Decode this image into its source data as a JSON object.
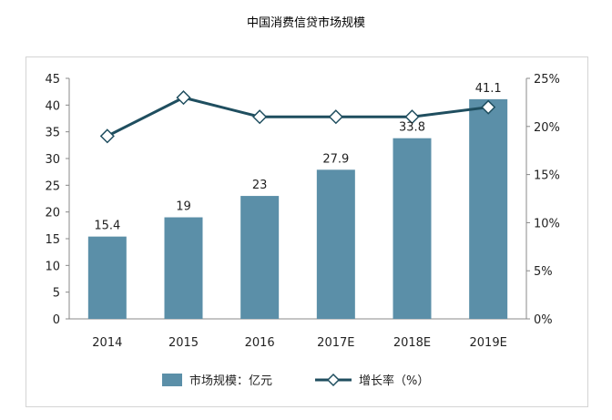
{
  "chart_data": {
    "type": "bar",
    "title": "中国消费信贷市场规模",
    "categories": [
      "2014",
      "2015",
      "2016",
      "2017E",
      "2018E",
      "2019E"
    ],
    "series": [
      {
        "name": "市场规模：亿元",
        "type": "bar",
        "axis": "left",
        "color": "#5b8fa8",
        "values": [
          15.4,
          19,
          23,
          27.9,
          33.8,
          41.1
        ],
        "data_labels": [
          "15.4",
          "19",
          "23",
          "27.9",
          "33.8",
          "41.1"
        ]
      },
      {
        "name": "增长率（%）",
        "type": "line",
        "axis": "right",
        "color": "#1f4e5f",
        "marker": "diamond",
        "values": [
          19,
          23,
          21,
          21,
          21,
          22
        ]
      }
    ],
    "y_left": {
      "min": 0,
      "max": 45,
      "step": 5,
      "ticks": [
        "0",
        "5",
        "10",
        "15",
        "20",
        "25",
        "30",
        "35",
        "40",
        "45"
      ]
    },
    "y_right": {
      "min": 0,
      "max": 25,
      "step": 5,
      "ticks": [
        "0%",
        "5%",
        "10%",
        "15%",
        "20%",
        "25%"
      ]
    },
    "grid": false,
    "legend_position": "bottom"
  }
}
